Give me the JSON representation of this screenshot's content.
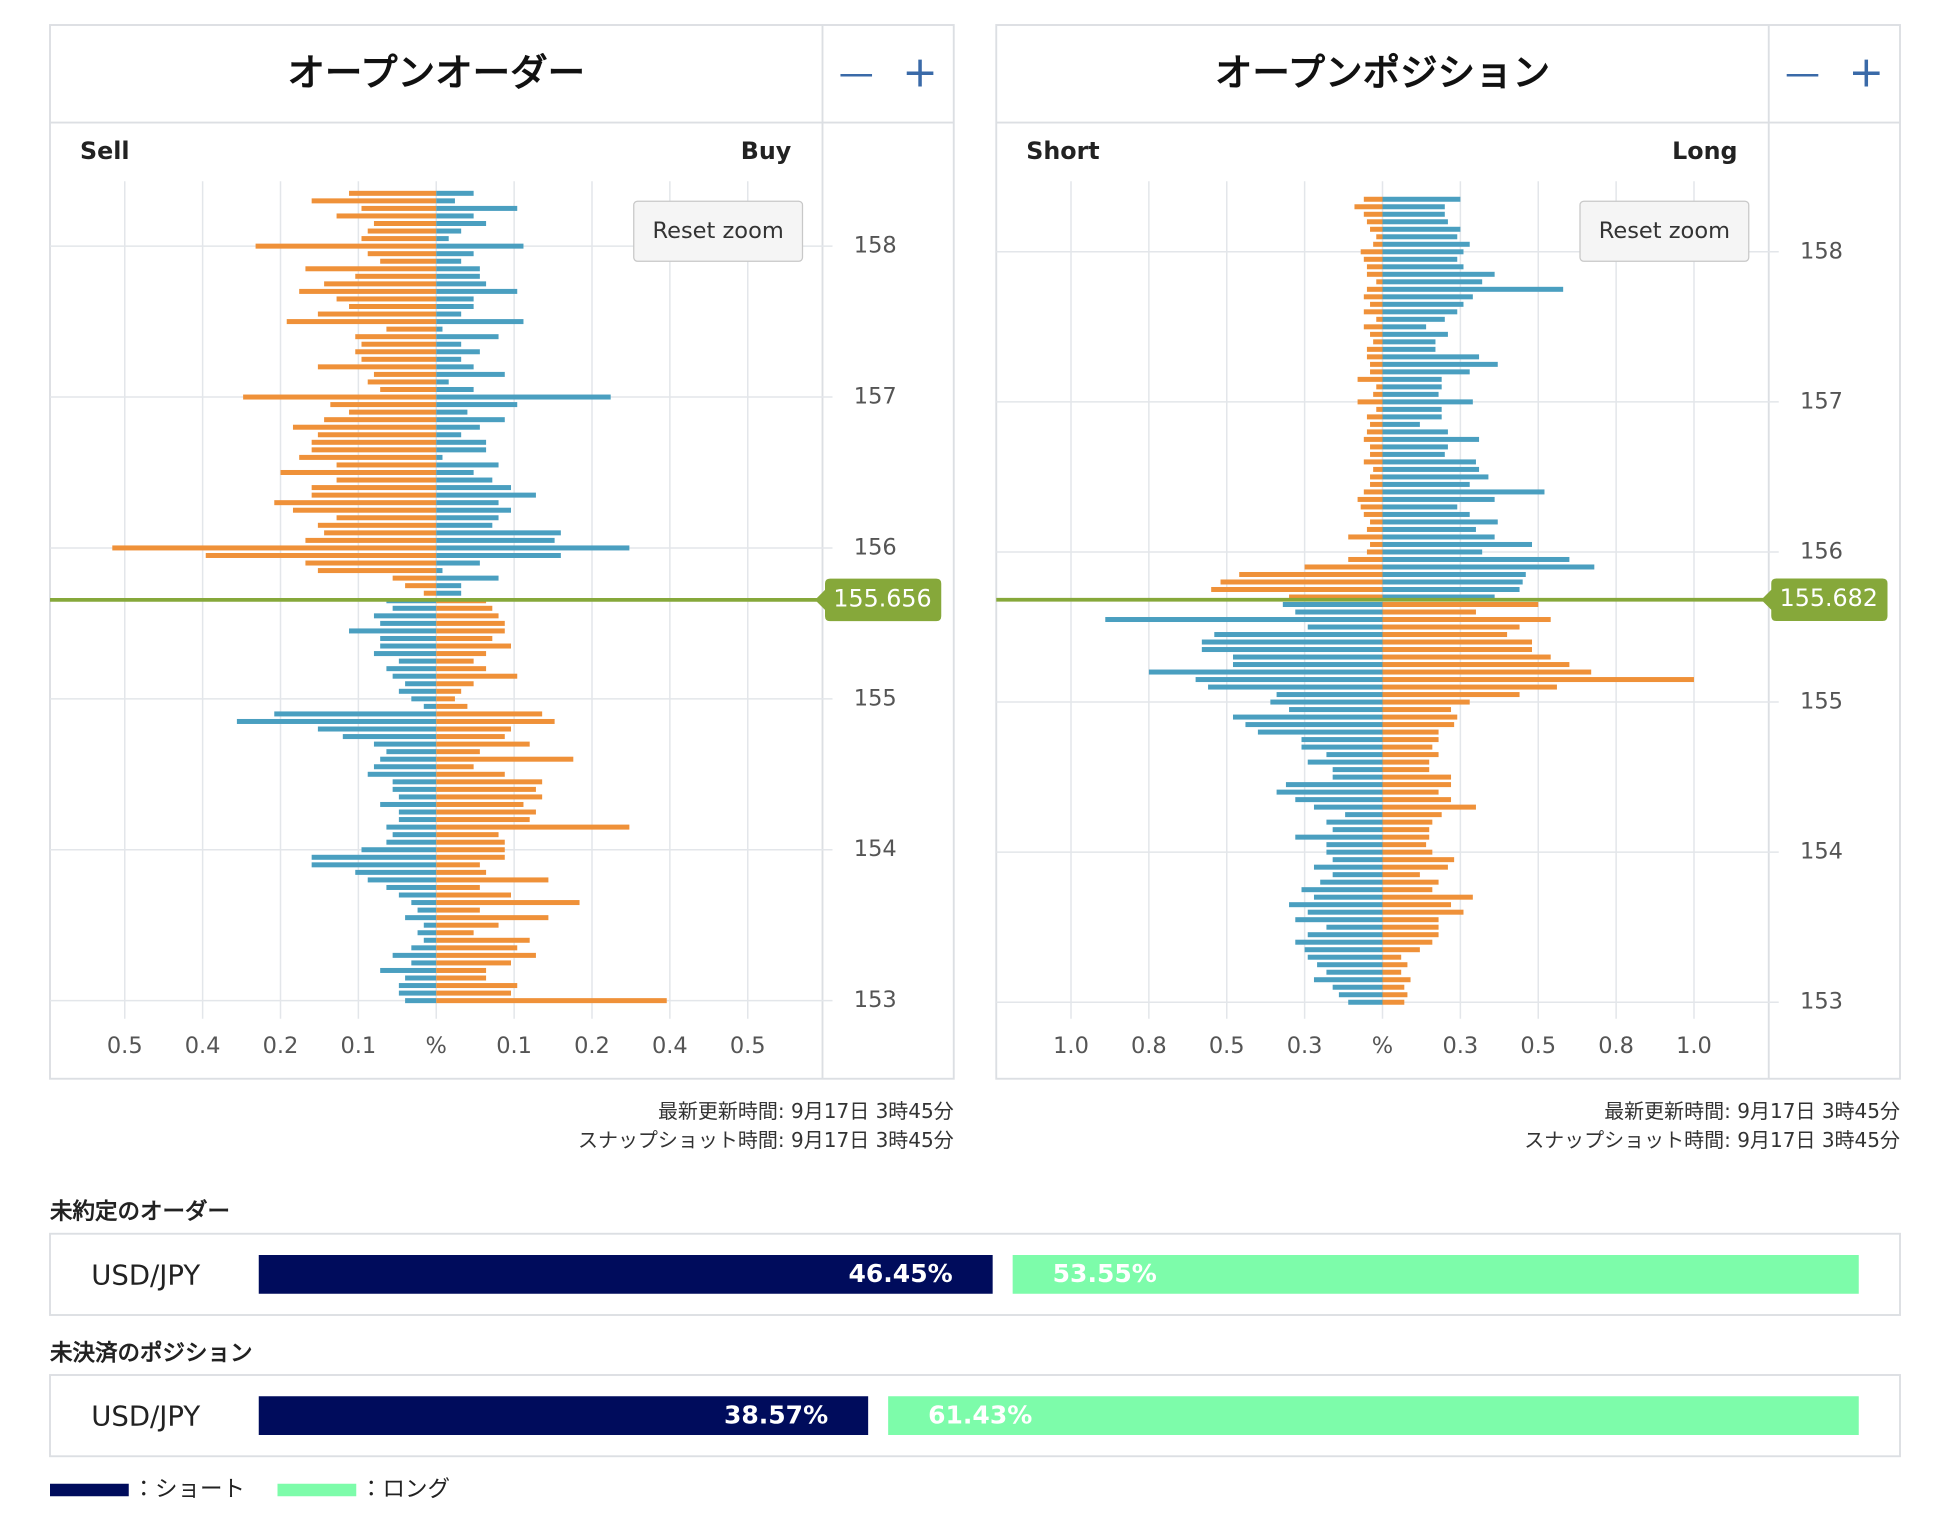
{
  "chart_data": [
    {
      "type": "butterfly",
      "title": "オープンオーダー",
      "zoom_out": "—",
      "zoom_in": "+",
      "reset_zoom": "Reset zoom",
      "prices": [
        153,
        153.05,
        153.1,
        153.15,
        153.2,
        153.25,
        153.3,
        153.35,
        153.4,
        153.45,
        153.5,
        153.55,
        153.6,
        153.65,
        153.7,
        153.75,
        153.8,
        153.85,
        153.9,
        153.95,
        154,
        154.05,
        154.1,
        154.15,
        154.2,
        154.25,
        154.3,
        154.35,
        154.4,
        154.45,
        154.5,
        154.55,
        154.6,
        154.65,
        154.7,
        154.75,
        154.8,
        154.85,
        154.9,
        154.95,
        155,
        155.05,
        155.1,
        155.15,
        155.2,
        155.25,
        155.3,
        155.35,
        155.4,
        155.45,
        155.5,
        155.55,
        155.6,
        155.65,
        155.7,
        155.75,
        155.8,
        155.85,
        155.9,
        155.95,
        156,
        156.05,
        156.1,
        156.15,
        156.2,
        156.25,
        156.3,
        156.35,
        156.4,
        156.45,
        156.5,
        156.55,
        156.6,
        156.65,
        156.7,
        156.75,
        156.8,
        156.85,
        156.9,
        156.95,
        157,
        157.05,
        157.1,
        157.15,
        157.2,
        157.25,
        157.3,
        157.35,
        157.4,
        157.45,
        157.5,
        157.55,
        157.6,
        157.65,
        157.7,
        157.75,
        157.8,
        157.85,
        157.9,
        157.95,
        158,
        158.05,
        158.1,
        158.15,
        158.2,
        158.25,
        158.3,
        158.35
      ],
      "series": [
        {
          "name": "Sell",
          "side": "left",
          "color_above": "#ef9139",
          "color_below": "#4a9fc0",
          "values": [
            0.05,
            0.06,
            0.06,
            0.05,
            0.09,
            0.04,
            0.07,
            0.04,
            0.02,
            0.03,
            0.02,
            0.05,
            0.03,
            0.04,
            0.06,
            0.08,
            0.11,
            0.13,
            0.2,
            0.2,
            0.12,
            0.08,
            0.07,
            0.08,
            0.06,
            0.06,
            0.09,
            0.06,
            0.07,
            0.07,
            0.11,
            0.1,
            0.09,
            0.08,
            0.1,
            0.15,
            0.19,
            0.32,
            0.26,
            0.02,
            0.04,
            0.06,
            0.05,
            0.07,
            0.08,
            0.06,
            0.1,
            0.09,
            0.09,
            0.14,
            0.09,
            0.1,
            0.07,
            0.08,
            0.02,
            0.05,
            0.07,
            0.19,
            0.21,
            0.37,
            0.52,
            0.21,
            0.18,
            0.19,
            0.16,
            0.23,
            0.26,
            0.2,
            0.2,
            0.16,
            0.25,
            0.16,
            0.22,
            0.2,
            0.2,
            0.19,
            0.23,
            0.18,
            0.14,
            0.17,
            0.31,
            0.09,
            0.11,
            0.1,
            0.19,
            0.12,
            0.13,
            0.12,
            0.13,
            0.08,
            0.24,
            0.19,
            0.14,
            0.16,
            0.22,
            0.18,
            0.13,
            0.21,
            0.09,
            0.11,
            0.29,
            0.12,
            0.11,
            0.1,
            0.16,
            0.12,
            0.2,
            0.14
          ]
        },
        {
          "name": "Buy",
          "side": "right",
          "color_above": "#4a9fc0",
          "color_below": "#ef9139",
          "values": [
            0.37,
            0.12,
            0.13,
            0.08,
            0.08,
            0.12,
            0.16,
            0.13,
            0.15,
            0.06,
            0.1,
            0.18,
            0.07,
            0.23,
            0.12,
            0.07,
            0.18,
            0.08,
            0.07,
            0.11,
            0.11,
            0.11,
            0.1,
            0.31,
            0.15,
            0.16,
            0.14,
            0.17,
            0.16,
            0.17,
            0.11,
            0.06,
            0.22,
            0.07,
            0.15,
            0.11,
            0.12,
            0.19,
            0.17,
            0.05,
            0.03,
            0.04,
            0.06,
            0.13,
            0.08,
            0.06,
            0.08,
            0.12,
            0.09,
            0.11,
            0.11,
            0.1,
            0.09,
            0.08,
            0.04,
            0.04,
            0.1,
            0.01,
            0.07,
            0.2,
            0.31,
            0.19,
            0.2,
            0.09,
            0.1,
            0.12,
            0.1,
            0.16,
            0.12,
            0.09,
            0.06,
            0.1,
            0.01,
            0.08,
            0.08,
            0.04,
            0.07,
            0.11,
            0.05,
            0.13,
            0.28,
            0.06,
            0.02,
            0.11,
            0.06,
            0.04,
            0.07,
            0.04,
            0.1,
            0.01,
            0.14,
            0.04,
            0.06,
            0.06,
            0.13,
            0.08,
            0.07,
            0.07,
            0.04,
            0.06,
            0.14,
            0.02,
            0.04,
            0.08,
            0.06,
            0.13,
            0.03,
            0.06
          ]
        }
      ],
      "current_price": 155.656,
      "current_color": "#86a83a",
      "xlim": [
        -0.62,
        0.62
      ],
      "xticks": [
        {
          "value": -0.5,
          "label": "0.5"
        },
        {
          "value": -0.375,
          "label": "0.4"
        },
        {
          "value": -0.25,
          "label": "0.2"
        },
        {
          "value": -0.125,
          "label": "0.1"
        },
        {
          "value": 0,
          "label": "%"
        },
        {
          "value": 0.125,
          "label": "0.1"
        },
        {
          "value": 0.25,
          "label": "0.2"
        },
        {
          "value": 0.375,
          "label": "0.4"
        },
        {
          "value": 0.5,
          "label": "0.5"
        }
      ],
      "ylim": [
        152.88,
        158.43
      ],
      "yticks": [
        153,
        154,
        155,
        156,
        157,
        158
      ],
      "grid": true,
      "updated": "最新更新時間: 9月17日 3時45分",
      "snapshot": "スナップショット時間: 9月17日 3時45分"
    },
    {
      "type": "butterfly",
      "title": "オープンポジション",
      "zoom_out": "—",
      "zoom_in": "+",
      "reset_zoom": "Reset zoom",
      "prices": [
        153,
        153.05,
        153.1,
        153.15,
        153.2,
        153.25,
        153.3,
        153.35,
        153.4,
        153.45,
        153.5,
        153.55,
        153.6,
        153.65,
        153.7,
        153.75,
        153.8,
        153.85,
        153.9,
        153.95,
        154,
        154.05,
        154.1,
        154.15,
        154.2,
        154.25,
        154.3,
        154.35,
        154.4,
        154.45,
        154.5,
        154.55,
        154.6,
        154.65,
        154.7,
        154.75,
        154.8,
        154.85,
        154.9,
        154.95,
        155,
        155.05,
        155.1,
        155.15,
        155.2,
        155.25,
        155.3,
        155.35,
        155.4,
        155.45,
        155.5,
        155.55,
        155.6,
        155.65,
        155.7,
        155.75,
        155.8,
        155.85,
        155.9,
        155.95,
        156,
        156.05,
        156.1,
        156.15,
        156.2,
        156.25,
        156.3,
        156.35,
        156.4,
        156.45,
        156.5,
        156.55,
        156.6,
        156.65,
        156.7,
        156.75,
        156.8,
        156.85,
        156.9,
        156.95,
        157,
        157.05,
        157.1,
        157.15,
        157.2,
        157.25,
        157.3,
        157.35,
        157.4,
        157.45,
        157.5,
        157.55,
        157.6,
        157.65,
        157.7,
        157.75,
        157.8,
        157.85,
        157.9,
        157.95,
        158,
        158.05,
        158.1,
        158.15,
        158.2,
        158.25,
        158.3,
        158.35
      ],
      "series": [
        {
          "name": "Short",
          "side": "left",
          "color_above": "#ef9139",
          "color_below": "#4a9fc0",
          "values": [
            0.11,
            0.14,
            0.16,
            0.22,
            0.18,
            0.21,
            0.24,
            0.25,
            0.28,
            0.24,
            0.18,
            0.28,
            0.24,
            0.3,
            0.22,
            0.26,
            0.2,
            0.16,
            0.22,
            0.16,
            0.18,
            0.18,
            0.28,
            0.16,
            0.18,
            0.12,
            0.22,
            0.28,
            0.34,
            0.31,
            0.16,
            0.16,
            0.24,
            0.18,
            0.26,
            0.26,
            0.4,
            0.44,
            0.48,
            0.3,
            0.36,
            0.34,
            0.56,
            0.6,
            0.75,
            0.48,
            0.48,
            0.58,
            0.58,
            0.54,
            0.24,
            0.89,
            0.28,
            0.32,
            0.3,
            0.55,
            0.52,
            0.46,
            0.25,
            0.11,
            0.05,
            0.04,
            0.11,
            0.05,
            0.04,
            0.06,
            0.07,
            0.08,
            0.06,
            0.04,
            0.04,
            0.03,
            0.06,
            0.04,
            0.04,
            0.06,
            0.05,
            0.04,
            0.05,
            0.02,
            0.08,
            0.03,
            0.02,
            0.08,
            0.04,
            0.04,
            0.05,
            0.05,
            0.03,
            0.04,
            0.06,
            0.02,
            0.06,
            0.04,
            0.06,
            0.05,
            0.02,
            0.05,
            0.05,
            0.06,
            0.07,
            0.03,
            0.02,
            0.04,
            0.05,
            0.06,
            0.09,
            0.06
          ]
        },
        {
          "name": "Long",
          "side": "right",
          "color_above": "#4a9fc0",
          "color_below": "#ef9139",
          "values": [
            0.07,
            0.08,
            0.07,
            0.09,
            0.06,
            0.08,
            0.06,
            0.12,
            0.16,
            0.18,
            0.18,
            0.18,
            0.26,
            0.22,
            0.29,
            0.16,
            0.18,
            0.12,
            0.21,
            0.23,
            0.16,
            0.14,
            0.15,
            0.15,
            0.16,
            0.19,
            0.3,
            0.22,
            0.18,
            0.22,
            0.22,
            0.15,
            0.15,
            0.18,
            0.16,
            0.18,
            0.18,
            0.23,
            0.24,
            0.22,
            0.28,
            0.44,
            0.56,
            1.0,
            0.67,
            0.6,
            0.54,
            0.48,
            0.48,
            0.4,
            0.44,
            0.54,
            0.3,
            0.5,
            0.36,
            0.44,
            0.45,
            0.46,
            0.68,
            0.6,
            0.32,
            0.48,
            0.36,
            0.3,
            0.37,
            0.28,
            0.24,
            0.36,
            0.52,
            0.28,
            0.34,
            0.31,
            0.3,
            0.2,
            0.21,
            0.31,
            0.21,
            0.12,
            0.19,
            0.19,
            0.29,
            0.18,
            0.19,
            0.19,
            0.28,
            0.37,
            0.31,
            0.17,
            0.17,
            0.21,
            0.14,
            0.2,
            0.24,
            0.26,
            0.29,
            0.58,
            0.32,
            0.36,
            0.26,
            0.24,
            0.26,
            0.28,
            0.24,
            0.25,
            0.21,
            0.2,
            0.2,
            0.25
          ]
        }
      ],
      "current_price": 155.682,
      "current_color": "#86a83a",
      "xlim": [
        -1.24,
        1.24
      ],
      "xticks": [
        {
          "value": -1,
          "label": "1.0"
        },
        {
          "value": -0.75,
          "label": "0.8"
        },
        {
          "value": -0.5,
          "label": "0.5"
        },
        {
          "value": -0.25,
          "label": "0.3"
        },
        {
          "value": 0,
          "label": "%"
        },
        {
          "value": 0.25,
          "label": "0.3"
        },
        {
          "value": 0.5,
          "label": "0.5"
        },
        {
          "value": 0.75,
          "label": "0.8"
        },
        {
          "value": 1,
          "label": "1.0"
        }
      ],
      "ylim": [
        152.89,
        158.47
      ],
      "yticks": [
        153,
        154,
        155,
        156,
        157,
        158
      ],
      "grid": true,
      "updated": "最新更新時間: 9月17日 3時45分",
      "snapshot": "スナップショット時間: 9月17日 3時45分"
    },
    {
      "type": "ratio",
      "title": "未約定のオーダー",
      "categories": [
        "USD/JPY"
      ],
      "series": [
        {
          "color": "#000c5c",
          "values": [
            46.45
          ],
          "value_labels": [
            "46.45%"
          ]
        },
        {
          "color": "#7dfcaa",
          "values": [
            53.55
          ],
          "value_labels": [
            "53.55%"
          ]
        }
      ]
    },
    {
      "type": "ratio",
      "title": "未決済のポジション",
      "categories": [
        "USD/JPY"
      ],
      "series": [
        {
          "color": "#000c5c",
          "values": [
            38.57
          ],
          "value_labels": [
            "38.57%"
          ]
        },
        {
          "color": "#7dfcaa",
          "values": [
            61.43
          ],
          "value_labels": [
            "61.43%"
          ]
        }
      ]
    }
  ],
  "legend": [
    {
      "label": "：ショート",
      "color": "#000c5c"
    },
    {
      "label": "：ロング",
      "color": "#7dfcaa"
    }
  ]
}
